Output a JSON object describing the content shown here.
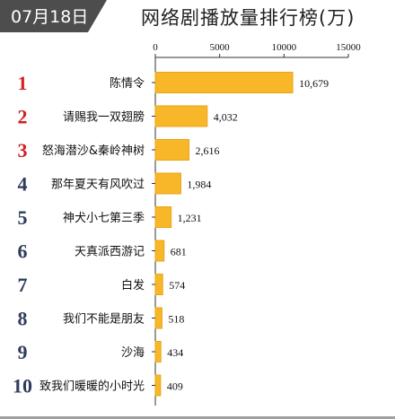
{
  "date_label": "07月18日",
  "colors": {
    "badge": "#4d4d4d",
    "bar": "#f7b728",
    "bar_edge": "#e8a515",
    "rank_top": "#d02020",
    "rank_other": "#2f3c5c"
  },
  "chart_data": {
    "type": "bar",
    "orientation": "horizontal",
    "title": "网络剧播放量排行榜(万)",
    "ranks": [
      "1",
      "2",
      "3",
      "4",
      "5",
      "6",
      "7",
      "8",
      "9",
      "10"
    ],
    "categories": [
      "陈情令",
      "请赐我一双翅膀",
      "怒海潜沙&秦岭神树",
      "那年夏天有风吹过",
      "神犬小七第三季",
      "天真派西游记",
      "白发",
      "我们不能是朋友",
      "沙海",
      "致我们暖暖的小时光"
    ],
    "values": [
      10679,
      4032,
      2616,
      1984,
      1231,
      681,
      574,
      518,
      434,
      409
    ],
    "value_labels": [
      "10,679",
      "4,032",
      "2,616",
      "1,984",
      "1,231",
      "681",
      "574",
      "518",
      "434",
      "409"
    ],
    "xlim": [
      0,
      15000
    ],
    "ticks": [
      0,
      5000,
      10000,
      15000
    ],
    "tick_labels": [
      "0",
      "5000",
      "10000",
      "15000"
    ],
    "legend": "none",
    "grid": false
  }
}
